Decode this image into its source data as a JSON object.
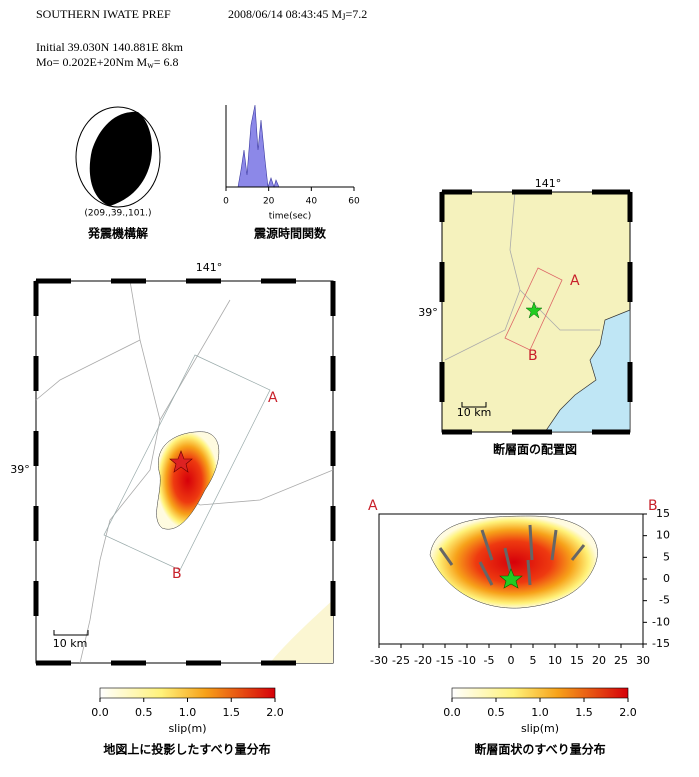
{
  "header": {
    "title": "SOUTHERN IWATE PREF",
    "datetime": "2008/06/14 08:43:45",
    "mj_symbol": "M",
    "mj_sub": "J",
    "mj_value": "=7.2",
    "initial": "Initial   39.030N  140.881E  8km",
    "moment": "Mo= 0.202E+20Nm",
    "mw_symbol": "M",
    "mw_sub": "w",
    "mw_value": "= 6.8"
  },
  "mechanism": {
    "label": "(209.,39.,101.)",
    "caption": "発震機構解"
  },
  "source_time_function": {
    "xlim": [
      0,
      60
    ],
    "xticks": [
      0,
      20,
      40,
      60
    ],
    "xlabel": "time(sec)",
    "caption": "震源時間関数"
  },
  "location_map": {
    "lon_label": "141°",
    "lat_label": "39°",
    "point_a": "A",
    "point_b": "B",
    "scale": "10 km",
    "caption": "断層面の配置図"
  },
  "slip_map": {
    "lon_label": "141°",
    "lat_label": "39°",
    "point_a": "A",
    "point_b": "B",
    "scale": "10 km",
    "colorbar": {
      "lim": [
        0,
        2
      ],
      "ticks": [
        {
          "value": 0,
          "label": "0.0"
        },
        {
          "value": 0.5,
          "label": "0.5"
        },
        {
          "value": 1,
          "label": "1.0"
        },
        {
          "value": 1.5,
          "label": "1.5"
        },
        {
          "value": 2,
          "label": "2.0"
        }
      ],
      "label": "slip(m)"
    },
    "caption": "地図上に投影したすべり量分布"
  },
  "fault_plane": {
    "point_a": "A",
    "point_b": "B",
    "xlim": [
      -30,
      30
    ],
    "xticks": [
      -30,
      -25,
      -20,
      -15,
      -10,
      -5,
      0,
      5,
      10,
      15,
      20,
      25,
      30
    ],
    "ylim": [
      -15,
      15
    ],
    "yticks": [
      15,
      10,
      5,
      0,
      -5,
      -10,
      -15
    ],
    "colorbar": {
      "lim": [
        0,
        2
      ],
      "ticks": [
        {
          "value": 0,
          "label": "0.0"
        },
        {
          "value": 0.5,
          "label": "0.5"
        },
        {
          "value": 1,
          "label": "1.0"
        },
        {
          "value": 1.5,
          "label": "1.5"
        },
        {
          "value": 2,
          "label": "2.0"
        }
      ],
      "label": "slip(m)"
    },
    "caption": "断層面状のすべり量分布"
  }
}
